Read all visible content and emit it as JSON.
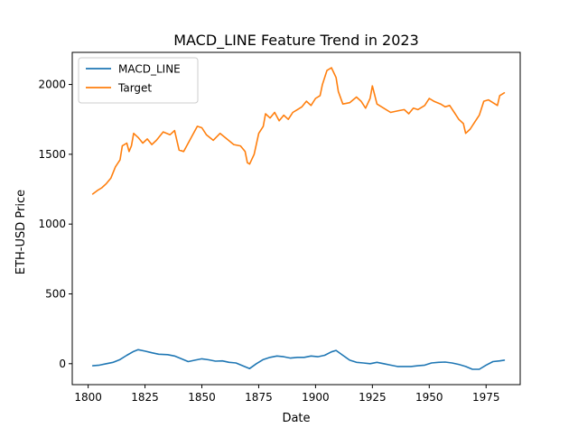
{
  "chart_data": {
    "type": "line",
    "title": "MACD_LINE Feature Trend in 2023",
    "xlabel": "Date",
    "ylabel": "ETH-USD Price",
    "xlim": [
      1793,
      1990
    ],
    "ylim": [
      -150,
      2230
    ],
    "xticks": [
      1800,
      1825,
      1850,
      1875,
      1900,
      1925,
      1950,
      1975
    ],
    "yticks": [
      0,
      500,
      1000,
      1500,
      2000
    ],
    "grid": false,
    "legend_position": "top-left",
    "series": [
      {
        "name": "MACD_LINE",
        "color": "#1f77b4",
        "x": [
          1802,
          1805,
          1808,
          1811,
          1814,
          1817,
          1820,
          1822,
          1825,
          1828,
          1831,
          1835,
          1838,
          1841,
          1844,
          1847,
          1850,
          1853,
          1856,
          1859,
          1862,
          1865,
          1868,
          1871,
          1874,
          1877,
          1880,
          1883,
          1886,
          1889,
          1892,
          1895,
          1898,
          1901,
          1904,
          1907,
          1909,
          1912,
          1915,
          1918,
          1921,
          1924,
          1927,
          1930,
          1933,
          1936,
          1939,
          1942,
          1945,
          1948,
          1951,
          1954,
          1957,
          1960,
          1963,
          1966,
          1969,
          1972,
          1975,
          1978,
          1981,
          1983
        ],
        "y": [
          -15,
          -10,
          0,
          10,
          30,
          60,
          88,
          100,
          90,
          78,
          68,
          65,
          55,
          35,
          15,
          25,
          35,
          28,
          18,
          20,
          10,
          5,
          -15,
          -35,
          0,
          30,
          45,
          55,
          50,
          40,
          45,
          45,
          55,
          50,
          60,
          85,
          95,
          60,
          25,
          10,
          5,
          0,
          10,
          0,
          -10,
          -20,
          -20,
          -20,
          -15,
          -10,
          5,
          10,
          12,
          5,
          -5,
          -20,
          -40,
          -40,
          -10,
          15,
          20,
          25
        ]
      },
      {
        "name": "Target",
        "color": "#ff7f0e",
        "x": [
          1802,
          1804,
          1806,
          1808,
          1810,
          1812,
          1814,
          1815,
          1817,
          1818,
          1819,
          1820,
          1822,
          1824,
          1826,
          1828,
          1830,
          1833,
          1836,
          1838,
          1840,
          1842,
          1844,
          1846,
          1848,
          1850,
          1852,
          1855,
          1858,
          1861,
          1864,
          1867,
          1869,
          1870,
          1871,
          1873,
          1875,
          1877,
          1878,
          1880,
          1882,
          1884,
          1886,
          1888,
          1890,
          1892,
          1894,
          1896,
          1898,
          1900,
          1902,
          1903,
          1905,
          1907,
          1909,
          1910,
          1912,
          1915,
          1918,
          1920,
          1922,
          1924,
          1925,
          1927,
          1930,
          1933,
          1936,
          1939,
          1941,
          1943,
          1945,
          1948,
          1950,
          1952,
          1955,
          1957,
          1959,
          1961,
          1963,
          1965,
          1966,
          1968,
          1970,
          1972,
          1974,
          1976,
          1978,
          1980,
          1981,
          1983
        ],
        "y": [
          1215,
          1240,
          1260,
          1290,
          1330,
          1410,
          1460,
          1560,
          1580,
          1520,
          1560,
          1650,
          1620,
          1580,
          1610,
          1570,
          1600,
          1660,
          1640,
          1670,
          1530,
          1520,
          1580,
          1640,
          1700,
          1690,
          1640,
          1600,
          1650,
          1610,
          1570,
          1560,
          1520,
          1440,
          1430,
          1500,
          1650,
          1700,
          1790,
          1760,
          1800,
          1740,
          1780,
          1750,
          1800,
          1820,
          1840,
          1880,
          1850,
          1900,
          1920,
          2000,
          2100,
          2120,
          2050,
          1950,
          1860,
          1870,
          1910,
          1880,
          1830,
          1900,
          1990,
          1860,
          1830,
          1800,
          1810,
          1820,
          1790,
          1830,
          1820,
          1850,
          1900,
          1880,
          1860,
          1840,
          1850,
          1800,
          1750,
          1720,
          1650,
          1680,
          1730,
          1780,
          1880,
          1890,
          1870,
          1850,
          1920,
          1940
        ]
      }
    ]
  }
}
